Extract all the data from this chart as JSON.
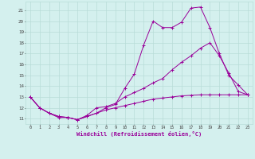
{
  "xlabel": "Windchill (Refroidissement éolien,°C)",
  "background_color": "#d4f0ee",
  "grid_color": "#b8dcd8",
  "line_color": "#990099",
  "xlim": [
    -0.5,
    23.5
  ],
  "ylim": [
    10.5,
    21.8
  ],
  "yticks": [
    11,
    12,
    13,
    14,
    15,
    16,
    17,
    18,
    19,
    20,
    21
  ],
  "xticks": [
    0,
    1,
    2,
    3,
    4,
    5,
    6,
    7,
    8,
    9,
    10,
    11,
    12,
    13,
    14,
    15,
    16,
    17,
    18,
    19,
    20,
    21,
    22,
    23
  ],
  "line1_x": [
    0,
    1,
    2,
    3,
    4,
    5,
    6,
    7,
    8,
    9,
    10,
    11,
    12,
    13,
    14,
    15,
    16,
    17,
    18,
    19,
    20,
    21,
    22,
    23
  ],
  "line1_y": [
    13.0,
    12.0,
    11.5,
    11.2,
    11.1,
    10.9,
    11.2,
    11.5,
    12.0,
    12.3,
    13.8,
    15.1,
    17.8,
    20.0,
    19.4,
    19.4,
    19.9,
    21.2,
    21.3,
    19.4,
    17.0,
    15.0,
    14.1,
    13.2
  ],
  "line2_x": [
    0,
    1,
    2,
    3,
    4,
    5,
    6,
    7,
    8,
    9,
    10,
    11,
    12,
    13,
    14,
    15,
    16,
    17,
    18,
    19,
    20,
    21,
    22,
    23
  ],
  "line2_y": [
    13.0,
    12.0,
    11.5,
    11.1,
    11.1,
    10.9,
    11.3,
    12.0,
    12.1,
    12.4,
    13.0,
    13.4,
    13.8,
    14.3,
    14.7,
    15.5,
    16.2,
    16.8,
    17.5,
    18.0,
    16.8,
    15.2,
    13.5,
    13.2
  ],
  "line3_x": [
    0,
    1,
    2,
    3,
    4,
    5,
    6,
    7,
    8,
    9,
    10,
    11,
    12,
    13,
    14,
    15,
    16,
    17,
    18,
    19,
    20,
    21,
    22,
    23
  ],
  "line3_y": [
    13.0,
    12.0,
    11.5,
    11.2,
    11.1,
    10.9,
    11.2,
    11.5,
    11.8,
    12.0,
    12.2,
    12.4,
    12.6,
    12.8,
    12.9,
    13.0,
    13.1,
    13.15,
    13.2,
    13.2,
    13.2,
    13.2,
    13.2,
    13.2
  ]
}
